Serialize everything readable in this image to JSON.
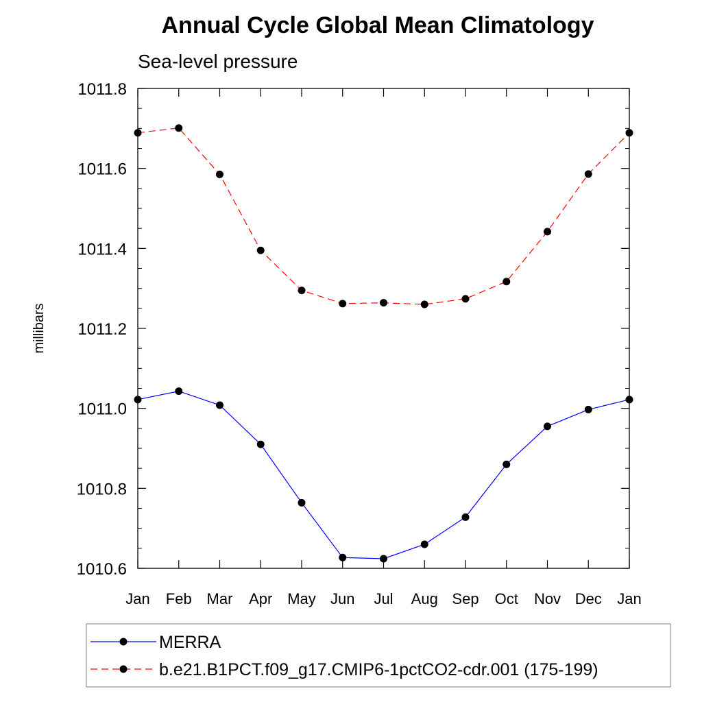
{
  "chart_data": {
    "type": "line",
    "title": "Annual Cycle Global Mean Climatology",
    "subtitle": "Sea-level pressure",
    "ylabel": "millibars",
    "xlabel": "",
    "categories": [
      "Jan",
      "Feb",
      "Mar",
      "Apr",
      "May",
      "Jun",
      "Jul",
      "Aug",
      "Sep",
      "Oct",
      "Nov",
      "Dec",
      "Jan"
    ],
    "ylim": [
      1010.6,
      1011.8
    ],
    "yticks": [
      "1010.6",
      "1010.8",
      "1011.0",
      "1011.2",
      "1011.4",
      "1011.6",
      "1011.8"
    ],
    "grid": false,
    "legend_position": "bottom",
    "series": [
      {
        "name": "MERRA",
        "color": "#0000ff",
        "line_style": "solid",
        "marker": "filled-circle",
        "values": [
          1011.022,
          1011.043,
          1011.008,
          1010.91,
          1010.764,
          1010.627,
          1010.624,
          1010.66,
          1010.728,
          1010.86,
          1010.955,
          1010.997,
          1011.022
        ]
      },
      {
        "name": "b.e21.B1PCT.f09_g17.CMIP6-1pctCO2-cdr.001 (175-199)",
        "color": "#ff0000",
        "line_style": "dashed",
        "marker": "filled-circle",
        "values": [
          1011.689,
          1011.701,
          1011.585,
          1011.395,
          1011.295,
          1011.262,
          1011.264,
          1011.26,
          1011.274,
          1011.317,
          1011.442,
          1011.586,
          1011.689
        ]
      }
    ]
  }
}
